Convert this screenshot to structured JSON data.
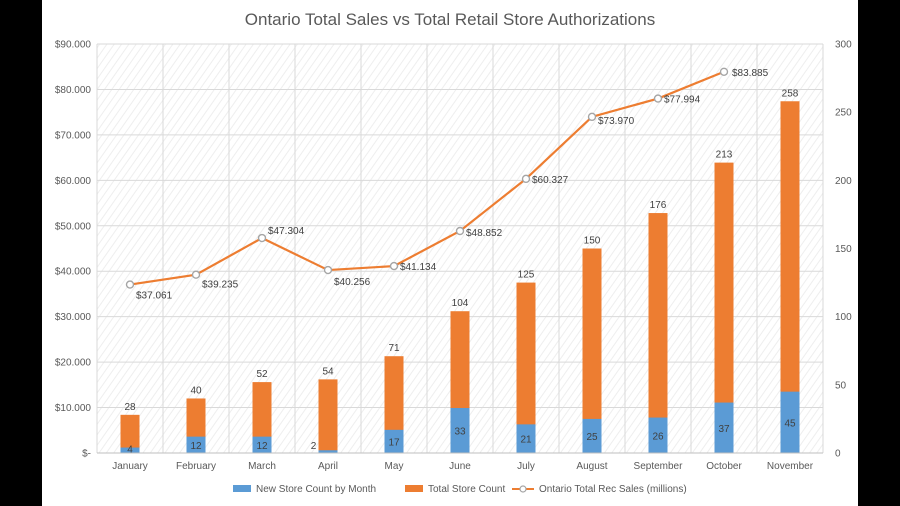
{
  "chart_data": {
    "type": "bar",
    "title": "Ontario Total Sales vs Total Retail Store Authorizations",
    "categories": [
      "January",
      "February",
      "March",
      "April",
      "May",
      "June",
      "July",
      "August",
      "September",
      "October",
      "November"
    ],
    "series": [
      {
        "name": "New Store Count by Month",
        "kind": "bar",
        "axis": "right",
        "color": "#5b9bd5",
        "values": [
          4,
          12,
          12,
          2,
          17,
          33,
          21,
          25,
          26,
          37,
          45
        ]
      },
      {
        "name": "Total Store Count",
        "kind": "bar",
        "axis": "right",
        "color": "#ed7d31",
        "values": [
          28,
          40,
          52,
          54,
          71,
          104,
          125,
          150,
          176,
          213,
          258
        ]
      },
      {
        "name": "Ontario Total Rec Sales (millions)",
        "kind": "line",
        "axis": "left",
        "color": "#ed7d31",
        "values": [
          37061,
          39235,
          47304,
          40256,
          41134,
          48852,
          60327,
          73970,
          77994,
          83885,
          null
        ],
        "labels": [
          "$37.061",
          "$39.235",
          "$47.304",
          "$40.256",
          "$41.134",
          "$48.852",
          "$60.327",
          "$73.970",
          "$77.994",
          "$83.885",
          ""
        ]
      }
    ],
    "y_left": {
      "min": 0,
      "max": 90000,
      "ticks": [
        "$-",
        "$10.000",
        "$20.000",
        "$30.000",
        "$40.000",
        "$50.000",
        "$60.000",
        "$70.000",
        "$80.000",
        "$90.000"
      ]
    },
    "y_right": {
      "min": 0,
      "max": 300,
      "ticks": [
        "0",
        "50",
        "100",
        "150",
        "200",
        "250",
        "300"
      ]
    },
    "legend_position": "bottom",
    "grid": true
  }
}
